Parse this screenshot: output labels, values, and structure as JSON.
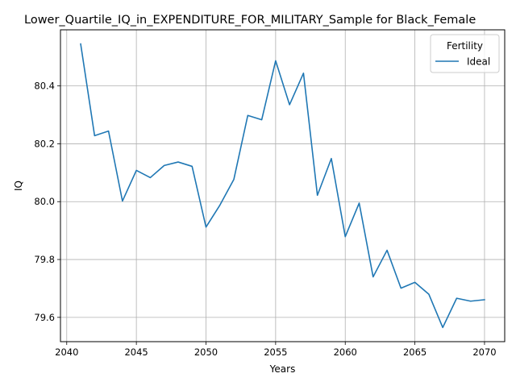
{
  "chart_data": {
    "type": "line",
    "title": "Lower_Quartile_IQ_in_EXPENDITURE_FOR_MILITARY_Sample for Black_Female",
    "xlabel": "Years",
    "ylabel": "IQ",
    "xlim": [
      2039.55,
      2071.45
    ],
    "ylim": [
      79.516,
      80.594
    ],
    "x_ticks": [
      2040,
      2045,
      2050,
      2055,
      2060,
      2065,
      2070
    ],
    "y_ticks": [
      79.6,
      79.8,
      80.0,
      80.2,
      80.4
    ],
    "x_tick_labels": [
      "2040",
      "2045",
      "2050",
      "2055",
      "2060",
      "2065",
      "2070"
    ],
    "y_tick_labels": [
      "79.6",
      "79.8",
      "80.0",
      "80.2",
      "80.4"
    ],
    "grid": true,
    "legend": {
      "title": "Fertility",
      "placement": "top-right",
      "entries": [
        "Ideal"
      ]
    },
    "series": [
      {
        "name": "Ideal",
        "color": "#1f77b4",
        "x": [
          2041,
          2042,
          2043,
          2044,
          2045,
          2046,
          2047,
          2048,
          2049,
          2050,
          2051,
          2052,
          2053,
          2054,
          2055,
          2056,
          2057,
          2058,
          2059,
          2060,
          2061,
          2062,
          2063,
          2064,
          2065,
          2066,
          2067,
          2068,
          2069,
          2070
        ],
        "y": [
          80.545,
          80.228,
          80.244,
          80.002,
          80.108,
          80.083,
          80.125,
          80.137,
          80.122,
          79.912,
          79.988,
          80.077,
          80.298,
          80.283,
          80.487,
          80.335,
          80.444,
          80.022,
          80.149,
          79.879,
          79.995,
          79.74,
          79.832,
          79.701,
          79.721,
          79.68,
          79.565,
          79.666,
          79.656,
          79.661
        ]
      }
    ]
  }
}
